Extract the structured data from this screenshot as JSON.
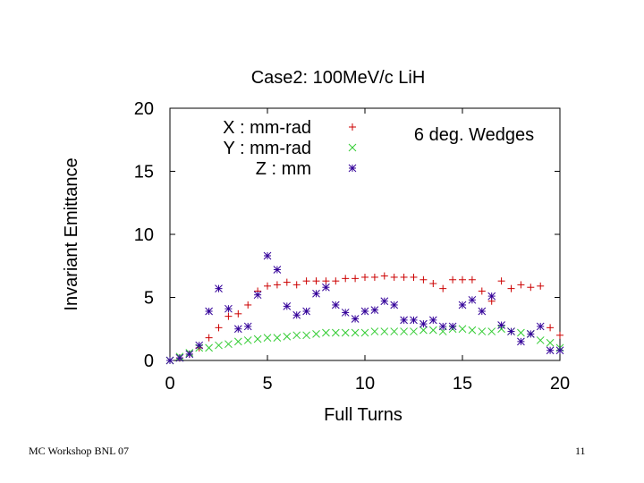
{
  "footer": {
    "left": "MC Workshop BNL 07",
    "right": "11"
  },
  "chart_data": {
    "type": "scatter",
    "title": "Case2: 100MeV/c LiH",
    "xlabel": "Full Turns",
    "ylabel": "Invariant Emittance",
    "xlim": [
      0,
      20
    ],
    "ylim": [
      0,
      20
    ],
    "xticks": [
      "0",
      "5",
      "10",
      "15",
      "20"
    ],
    "yticks": [
      "0",
      "5",
      "10",
      "15",
      "20"
    ],
    "grid": false,
    "legend_position": "top-left",
    "annotation": "6 deg. Wedges",
    "series": [
      {
        "name": "X : mm-rad",
        "marker": "plus",
        "color": "#cc0000",
        "x": [
          0,
          0.5,
          1,
          1.5,
          2,
          2.5,
          3,
          3.5,
          4,
          4.5,
          5,
          5.5,
          6,
          6.5,
          7,
          7.5,
          8,
          8.5,
          9,
          9.5,
          10,
          10.5,
          11,
          11.5,
          12,
          12.5,
          13,
          13.5,
          14,
          14.5,
          15,
          15.5,
          16,
          16.5,
          17,
          17.5,
          18,
          18.5,
          19,
          19.5,
          20
        ],
        "y": [
          0.0,
          0.2,
          0.5,
          1.0,
          1.8,
          2.6,
          3.5,
          3.7,
          4.4,
          5.5,
          5.9,
          6.0,
          6.2,
          6.0,
          6.3,
          6.3,
          6.3,
          6.3,
          6.5,
          6.5,
          6.6,
          6.6,
          6.7,
          6.6,
          6.6,
          6.6,
          6.4,
          6.1,
          5.7,
          6.4,
          6.4,
          6.4,
          5.5,
          4.7,
          6.3,
          5.7,
          6.0,
          5.8,
          5.9,
          2.6,
          2.0
        ]
      },
      {
        "name": "Y : mm-rad",
        "marker": "cross",
        "color": "#33cc33",
        "x": [
          0,
          0.5,
          1,
          1.5,
          2,
          2.5,
          3,
          3.5,
          4,
          4.5,
          5,
          5.5,
          6,
          6.5,
          7,
          7.5,
          8,
          8.5,
          9,
          9.5,
          10,
          10.5,
          11,
          11.5,
          12,
          12.5,
          13,
          13.5,
          14,
          14.5,
          15,
          15.5,
          16,
          16.5,
          17,
          17.5,
          18,
          18.5,
          19,
          19.5,
          20
        ],
        "y": [
          0.0,
          0.3,
          0.6,
          1.0,
          1.0,
          1.2,
          1.3,
          1.5,
          1.6,
          1.7,
          1.8,
          1.8,
          1.9,
          2.0,
          2.0,
          2.1,
          2.2,
          2.2,
          2.2,
          2.2,
          2.2,
          2.3,
          2.3,
          2.3,
          2.3,
          2.3,
          2.4,
          2.4,
          2.3,
          2.5,
          2.5,
          2.4,
          2.3,
          2.3,
          2.5,
          2.3,
          2.2,
          2.1,
          1.6,
          1.4,
          1.0
        ]
      },
      {
        "name": "Z : mm",
        "marker": "asterisk",
        "color": "#330099",
        "x": [
          0,
          0.5,
          1,
          1.5,
          2,
          2.5,
          3,
          3.5,
          4,
          4.5,
          5,
          5.5,
          6,
          6.5,
          7,
          7.5,
          8,
          8.5,
          9,
          9.5,
          10,
          10.5,
          11,
          11.5,
          12,
          12.5,
          13,
          13.5,
          14,
          14.5,
          15,
          15.5,
          16,
          16.5,
          17,
          17.5,
          18,
          18.5,
          19,
          19.5,
          20
        ],
        "y": [
          0.0,
          0.2,
          0.5,
          1.2,
          3.9,
          5.7,
          4.1,
          2.5,
          2.7,
          5.2,
          8.3,
          7.2,
          4.3,
          3.6,
          3.9,
          5.3,
          5.8,
          4.4,
          3.8,
          3.3,
          3.9,
          4.0,
          4.7,
          4.4,
          3.2,
          3.2,
          2.9,
          3.2,
          2.7,
          2.7,
          4.4,
          4.8,
          3.9,
          5.1,
          2.8,
          2.3,
          1.5,
          2.1,
          2.7,
          0.8,
          0.8
        ]
      }
    ]
  }
}
